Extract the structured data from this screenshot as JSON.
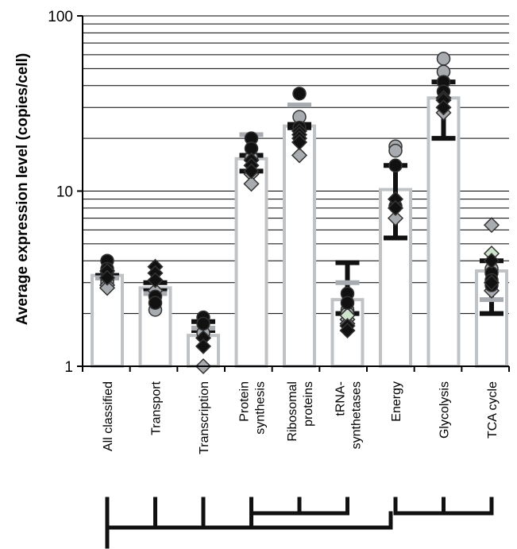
{
  "chart_data": {
    "type": "bar",
    "ylabel": "Average expression level (copies/cell)",
    "y_scale": "log",
    "ylim": [
      1,
      100
    ],
    "yticks": [
      {
        "value": 1,
        "label": "1"
      },
      {
        "value": 10,
        "label": "10"
      },
      {
        "value": 100,
        "label": "100"
      }
    ],
    "grid": true,
    "categories": [
      {
        "key": "all",
        "label_lines": [
          "All classified"
        ]
      },
      {
        "key": "transport",
        "label_lines": [
          "Transport"
        ]
      },
      {
        "key": "transcription",
        "label_lines": [
          "Transcription"
        ]
      },
      {
        "key": "protein",
        "label_lines": [
          "Protein",
          "synthesis"
        ]
      },
      {
        "key": "ribosomal",
        "label_lines": [
          "Ribosomal",
          "proteins"
        ]
      },
      {
        "key": "trna",
        "label_lines": [
          "tRNA-",
          "synthetases"
        ]
      },
      {
        "key": "energy",
        "label_lines": [
          "Energy"
        ]
      },
      {
        "key": "glycolysis",
        "label_lines": [
          "Glycolysis"
        ]
      },
      {
        "key": "tca",
        "label_lines": [
          "TCA cycle"
        ]
      }
    ],
    "bars": [
      3.3,
      2.8,
      1.5,
      15.3,
      23.5,
      2.4,
      10.2,
      34.0,
      3.5
    ],
    "error_bars": [
      {
        "low": 3.2,
        "high": 3.3
      },
      {
        "low": 2.7,
        "high": 3.0
      },
      {
        "low": 1.6,
        "high": 1.8
      },
      {
        "low": 13.0,
        "high": 16.0
      },
      {
        "low": 23.0,
        "high": 24.0
      },
      {
        "low": 2.0,
        "high": 3.9
      },
      {
        "low": 5.4,
        "high": 14.0
      },
      {
        "low": 20.0,
        "high": 42.0
      },
      {
        "low": 2.0,
        "high": 4.0
      }
    ],
    "gray_caps": [
      3.2,
      2.6,
      1.65,
      21.0,
      31.0,
      3.0,
      null,
      null,
      2.4
    ],
    "points": [
      {
        "circles_black": [
          4.0,
          3.6,
          3.4
        ],
        "circles_gray": [
          3.1,
          3.0
        ],
        "diamonds_black": [
          3.5,
          3.2
        ],
        "diamonds_gray": [
          2.9,
          2.8
        ]
      },
      {
        "circles_black": [
          2.5,
          2.3
        ],
        "circles_gray": [
          2.1
        ],
        "diamonds_black": [
          3.7,
          3.4,
          3.1
        ],
        "diamonds_gray": [
          2.7
        ]
      },
      {
        "circles_black": [
          1.9,
          1.75
        ],
        "circles_gray": [
          1.55
        ],
        "diamonds_black": [
          1.45,
          1.3
        ],
        "diamonds_gray": [
          1.0
        ]
      },
      {
        "circles_black": [
          20.0,
          17.5
        ],
        "circles_gray": [
          15.5
        ],
        "diamonds_black": [
          15.0,
          14.0,
          13.0
        ],
        "diamonds_gray": [
          12.5,
          11.0
        ]
      },
      {
        "circles_black": [
          36.0,
          23.0
        ],
        "circles_gray": [
          26.5
        ],
        "diamonds_black": [
          22.0,
          21.0,
          20.0,
          19.0
        ],
        "diamonds_gray": [
          16.0
        ]
      },
      {
        "circles_black": [
          2.6,
          2.3
        ],
        "circles_gray": [
          2.1,
          2.0
        ],
        "diamonds_black": [
          1.7,
          1.6
        ],
        "diamonds_gray": [
          1.85,
          1.75
        ],
        "diamonds_green": [
          1.95
        ]
      },
      {
        "circles_black": [
          14.0,
          8.2
        ],
        "circles_gray": [
          18.0,
          17.0
        ],
        "diamonds_black": [
          9.0,
          8.0
        ],
        "diamonds_gray": [
          7.0
        ]
      },
      {
        "circles_black": [
          42.0,
          37.0
        ],
        "circles_gray": [
          57.0,
          48.0
        ],
        "diamonds_black": [
          34.0,
          33.0,
          30.0
        ],
        "diamonds_gray": [
          28.0
        ]
      },
      {
        "circles_black": [
          3.4,
          3.1,
          2.9
        ],
        "circles_gray": [
          3.6
        ],
        "diamonds_black": [
          4.0,
          3.0
        ],
        "diamonds_gray": [
          6.4,
          2.7
        ],
        "diamonds_green": [
          4.4
        ]
      }
    ],
    "colors": {
      "bar_outline": "#bfc3c6",
      "gray_marker": "#a8acb0",
      "green_marker": "#cde3cc",
      "black": "#111111"
    },
    "hierarchy": {
      "top_brackets": [
        [
          0,
          1,
          2,
          3,
          4,
          5
        ],
        [
          6,
          7,
          8
        ]
      ],
      "sub_brackets": [
        [
          3,
          4,
          5
        ],
        [
          6,
          7,
          8
        ]
      ]
    }
  }
}
